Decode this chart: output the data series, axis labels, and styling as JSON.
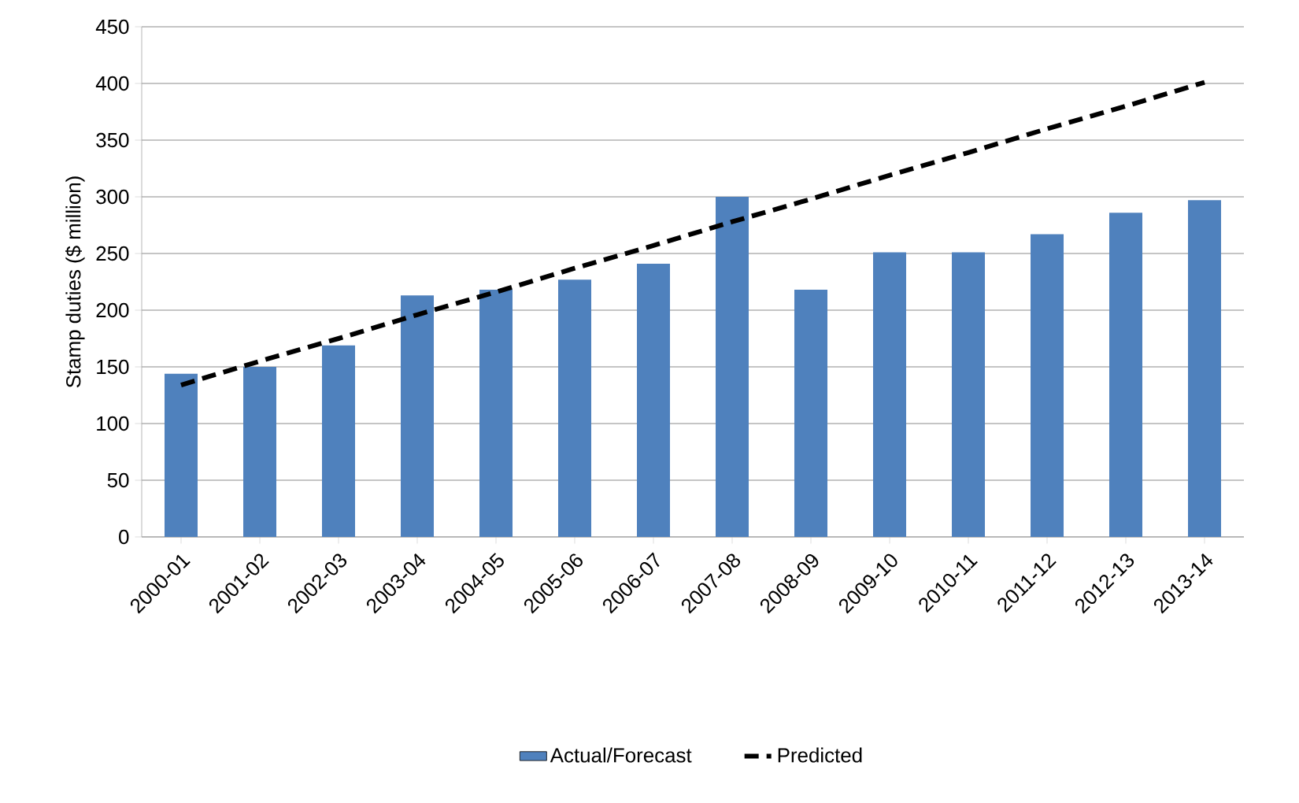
{
  "chart_data": {
    "type": "bar",
    "ylabel": "Stamp duties ($ million)",
    "categories": [
      "2000-01",
      "2001-02",
      "2002-03",
      "2003-04",
      "2004-05",
      "2005-06",
      "2006-07",
      "2007-08",
      "2008-09",
      "2009-10",
      "2010-11",
      "2011-12",
      "2012-13",
      "2013-14"
    ],
    "series": [
      {
        "name": "Actual/Forecast",
        "color": "#4f81bd",
        "values": [
          144,
          150,
          169,
          213,
          218,
          227,
          241,
          300,
          218,
          251,
          251,
          267,
          286,
          297
        ]
      },
      {
        "name": "Predicted",
        "type": "line",
        "color": "#000000",
        "line_style": "dashed",
        "marker": "none",
        "values": [
          134,
          155,
          175,
          196,
          216,
          237,
          257,
          278,
          298,
          319,
          339,
          360,
          380,
          401
        ]
      }
    ],
    "ylim": [
      0,
      450
    ],
    "yticks": [
      0,
      50,
      100,
      150,
      200,
      250,
      300,
      350,
      400,
      450
    ],
    "grid": "y",
    "legend": "bottom"
  }
}
